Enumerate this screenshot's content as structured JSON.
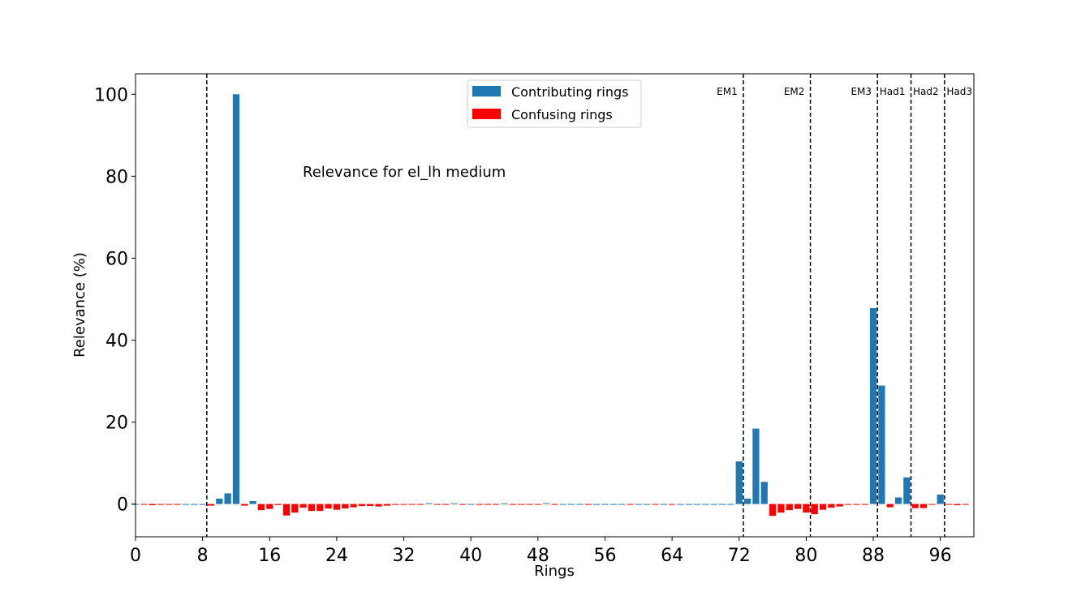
{
  "chart_data": {
    "type": "bar",
    "title": "",
    "annotation": "Relevance for el_lh medium",
    "xlabel": "Rings",
    "ylabel": "Relevance (%)",
    "xlim": [
      0,
      100
    ],
    "ylim": [
      -8,
      105
    ],
    "xticks": [
      0,
      8,
      16,
      24,
      32,
      40,
      48,
      56,
      64,
      72,
      80,
      88,
      96
    ],
    "yticks": [
      0,
      20,
      40,
      60,
      80,
      100
    ],
    "grid": false,
    "legend_placement": "upper-center",
    "legend": [
      {
        "label": "Contributing rings",
        "color": "#1f77b4"
      },
      {
        "label": "Confusing rings",
        "color": "#ff0000"
      }
    ],
    "layer_boundaries": [
      8.5,
      72.5,
      80.5,
      88.5,
      92.5,
      96.5
    ],
    "layer_labels": [
      {
        "label": "EM1",
        "x": 72
      },
      {
        "label": "EM2",
        "x": 80
      },
      {
        "label": "EM3",
        "x": 88
      },
      {
        "label": "Had1",
        "x": 92
      },
      {
        "label": "Had2",
        "x": 96
      },
      {
        "label": "Had3",
        "x": 100
      }
    ],
    "colors": {
      "positive": "#1f77b4",
      "negative": "#ff0000"
    },
    "series": [
      {
        "name": "Relevance",
        "x": [
          0,
          1,
          2,
          3,
          4,
          5,
          6,
          7,
          8,
          9,
          10,
          11,
          12,
          13,
          14,
          15,
          16,
          17,
          18,
          19,
          20,
          21,
          22,
          23,
          24,
          25,
          26,
          27,
          28,
          29,
          30,
          31,
          32,
          33,
          34,
          35,
          36,
          37,
          38,
          39,
          40,
          41,
          42,
          43,
          44,
          45,
          46,
          47,
          48,
          49,
          50,
          51,
          52,
          53,
          54,
          55,
          56,
          57,
          58,
          59,
          60,
          61,
          62,
          63,
          64,
          65,
          66,
          67,
          68,
          69,
          70,
          71,
          72,
          73,
          74,
          75,
          76,
          77,
          78,
          79,
          80,
          81,
          82,
          83,
          84,
          85,
          86,
          87,
          88,
          89,
          90,
          91,
          92,
          93,
          94,
          95,
          96,
          97,
          98,
          99
        ],
        "values": [
          0,
          -0.15,
          -0.3,
          -0.15,
          -0.15,
          -0.15,
          0,
          0,
          0,
          -0.4,
          1.3,
          2.6,
          100,
          -0.4,
          0.7,
          -1.5,
          -1.2,
          -0.25,
          -2.8,
          -2.1,
          -0.9,
          -1.7,
          -1.7,
          -1.1,
          -1.4,
          -1.1,
          -0.8,
          -0.5,
          -0.5,
          -0.6,
          -0.4,
          -0.2,
          -0.2,
          -0.15,
          -0.15,
          0.2,
          -0.05,
          -0.2,
          0.15,
          -0.2,
          0,
          -0.15,
          -0.15,
          -0.15,
          0.15,
          -0.15,
          -0.15,
          -0.2,
          -0.15,
          0.2,
          -0.2,
          0,
          0,
          0,
          -0.15,
          0,
          0,
          0,
          0,
          -0.15,
          0,
          0,
          -0.15,
          0,
          -0.15,
          0,
          0,
          0,
          0,
          0,
          0,
          0,
          10.4,
          1.3,
          18.4,
          5.4,
          -2.9,
          -2.1,
          -1.5,
          -1.2,
          -2.1,
          -2.5,
          -1.4,
          -0.9,
          -0.6,
          -0.2,
          -0.2,
          -0.15,
          47.8,
          28.9,
          -0.8,
          1.6,
          6.5,
          -1,
          -1,
          -0.15,
          2.3,
          -0.15,
          -0.3,
          -0.15
        ]
      }
    ]
  }
}
